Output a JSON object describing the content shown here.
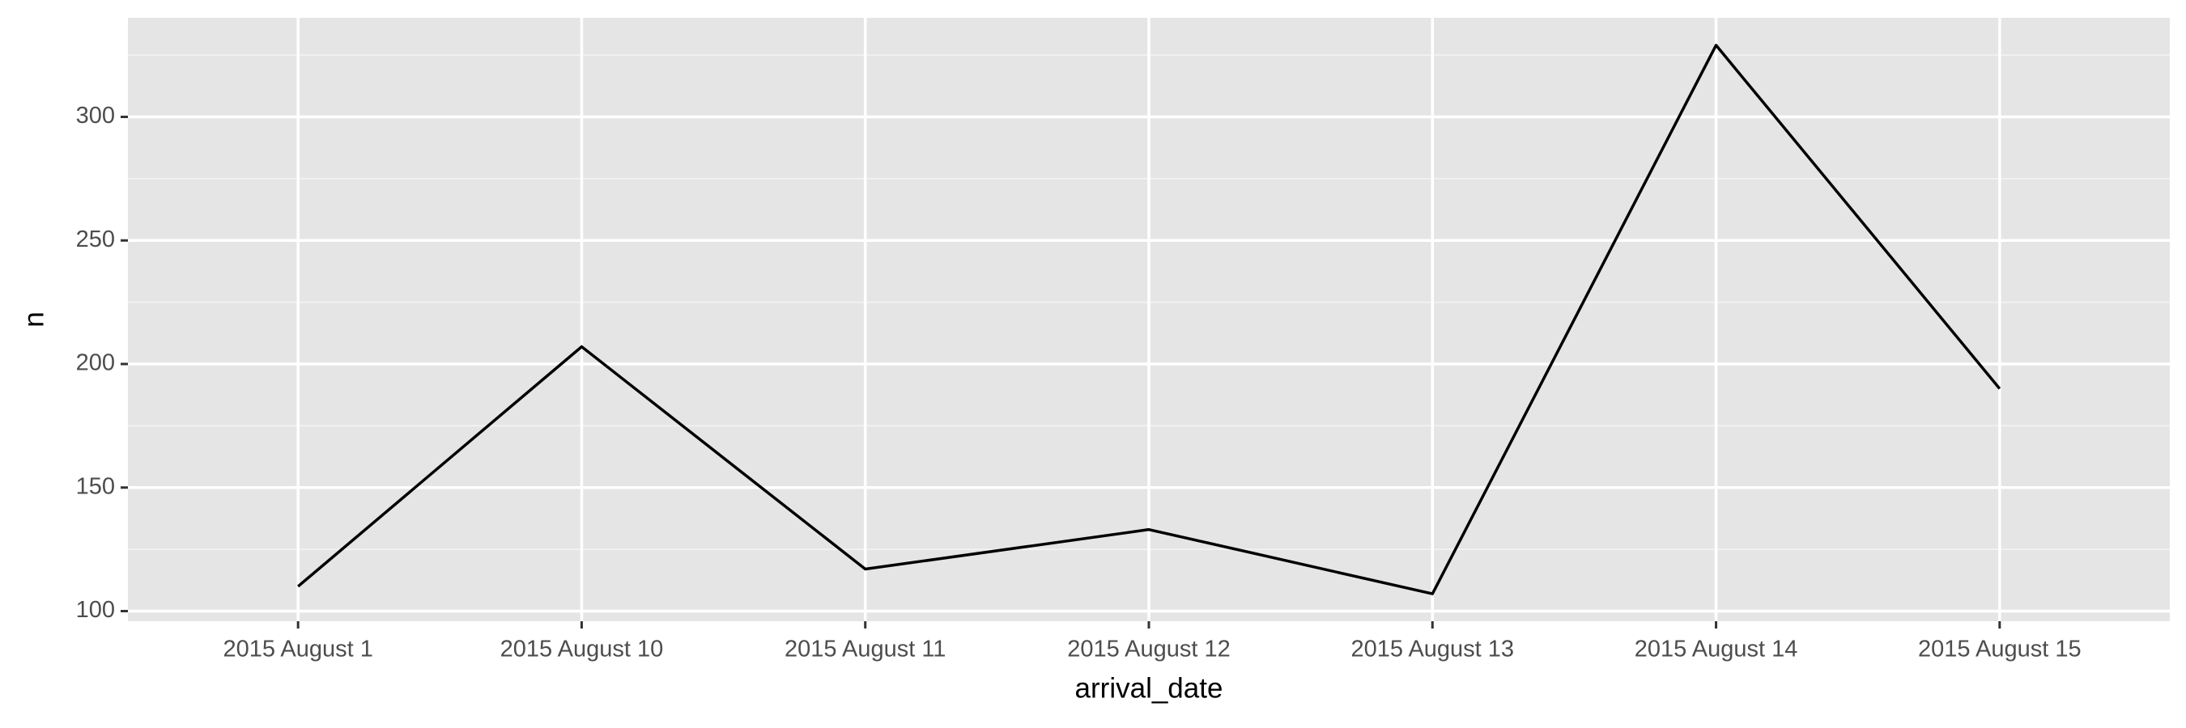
{
  "chart_data": {
    "type": "line",
    "x_label": "arrival_date",
    "y_label": "n",
    "categories": [
      "2015 August 1",
      "2015 August 10",
      "2015 August 11",
      "2015 August 12",
      "2015 August 13",
      "2015 August 14",
      "2015 August 15"
    ],
    "values": [
      110,
      207,
      117,
      133,
      107,
      329,
      190
    ],
    "color": "#000000",
    "ylim": [
      95.9,
      340.1
    ],
    "yticks": [
      100,
      150,
      200,
      250,
      300
    ],
    "grid": true
  }
}
